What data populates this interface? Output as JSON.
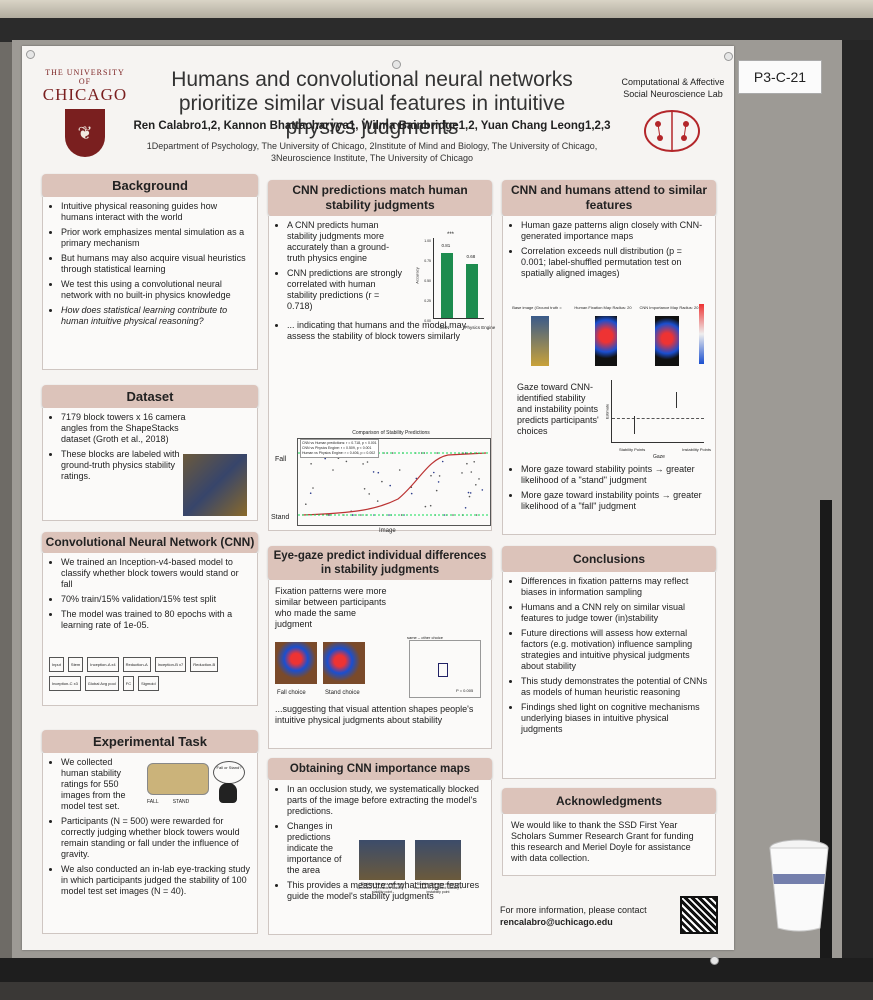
{
  "poster": {
    "university_small": "THE UNIVERSITY OF",
    "university_big": "CHICAGO",
    "title": "Humans and convolutional neural networks prioritize similar visual features in intuitive physics judgments",
    "authors": "Ren Calabro1,2, Kannon Bhattacharyya1, Wilma Bainbridge1,2, Yuan Chang Leong1,2,3",
    "affiliations": "1Department of Psychology, The University of Chicago, 2Institute of Mind and Biology, The University of Chicago, 3Neuroscience Institute, The University of Chicago",
    "lab": "Computational & Affective Social Neuroscience Lab",
    "booth": "P3-C-21"
  },
  "background": {
    "heading": "Background",
    "items": [
      "Intuitive physical reasoning guides how humans interact with the world",
      "Prior work emphasizes mental simulation as a primary mechanism",
      "But humans may also acquire visual heuristics through statistical learning",
      "We test this using a convolutional neural network with no built-in physics knowledge",
      "How does statistical learning contribute to human intuitive physical reasoning?"
    ]
  },
  "dataset": {
    "heading": "Dataset",
    "items": [
      "7179 block towers x 16 camera angles from the ShapeStacks dataset (Groth et al., 2018)",
      "These blocks are labeled with ground-truth physics stability ratings."
    ]
  },
  "cnn": {
    "heading": "Convolutional Neural Network (CNN)",
    "items": [
      "We trained an Inception-v4-based model to classify whether block towers would stand or fall",
      "70% train/15% validation/15% test split",
      "The model was trained to 80 epochs with a learning rate of 1e-05."
    ],
    "diagram_nodes": [
      "Input",
      "Stem",
      "Inception-A x4",
      "Reduction-A",
      "Inception-B x7",
      "Reduction-B",
      "Inception-C x3",
      "Global Avg pool",
      "FC",
      "Sigmoid"
    ]
  },
  "task": {
    "heading": "Experimental Task",
    "items": [
      "We collected human stability ratings for 550 images from the model test set.",
      "Participants (N = 500) were rewarded for correctly judging whether block towers would remain standing or fall under the influence of gravity.",
      "We also conducted an in-lab eye-tracking study in which participants judged the stability of 100 model test set images (N = 40)."
    ],
    "fall": "FALL",
    "stand": "STAND",
    "bubble": "Fall or Stand?"
  },
  "predictions": {
    "heading": "CNN predictions match human stability judgments",
    "items": [
      "A CNN predicts human stability judgments more accurately than a ground-truth physics engine",
      "CNN predictions are strongly correlated with human stability predictions (r = 0.718)",
      "... indicating that humans and the model may assess the stability of block towers similarly"
    ],
    "scatter_title": "Comparison of Stability Predictions",
    "scatter_stats": [
      "CNN vs Human predictions: r = 0.718, p < 0.001",
      "CNN vs Physics Engine: r = 0.509, p < 0.001",
      "Human vs Physics Engine: r = 0.406, p = 0.002"
    ],
    "scatter_xlabel": "Image",
    "fall": "Fall",
    "stand": "Stand",
    "sig": "***"
  },
  "chart_data": {
    "type": "bar",
    "categories": [
      "CNN",
      "Physics Engine"
    ],
    "values": [
      0.81,
      0.68
    ],
    "ylabel": "Accuracy",
    "ylim": [
      0,
      1.0
    ],
    "yticks": [
      "1.00",
      "0.75",
      "0.50",
      "0.25",
      "0.00"
    ],
    "value_labels": [
      "0.81",
      "0.68"
    ]
  },
  "gaze": {
    "heading": "Eye-gaze predict individual differences in stability judgments",
    "text_a": "Fixation patterns were more similar between participants who made the same judgment",
    "fall_choice": "Fall choice",
    "stand_choice": "Stand choice",
    "plot_label": "same – other choice",
    "p_value": "P = 0.005",
    "text_b": "...suggesting that visual attention shapes people's intuitive physical judgments about stability"
  },
  "maps": {
    "heading": "Obtaining CNN importance maps",
    "items": [
      "In an occlusion study, we systematically blocked parts of the image before extracting the model's predictions.",
      "Changes in predictions indicate the importance of the area",
      "This provides a measure of what image features guide the model's stability judgments"
    ],
    "cap_a": "Blocking this area causes a decrease in predicted stability = stability point",
    "cap_b": "Blocking this area causes a increase in predicted stability = instability point"
  },
  "attend": {
    "heading": "CNN and humans attend to similar features",
    "items_a": [
      "Human gaze patterns align closely with CNN-generated importance maps",
      "Correlation exceeds null distribution (p = 0.001; label-shuffled permutation test on spatially aligned images)"
    ],
    "img_labels": [
      "Base image (Ground truth = stable)",
      "Human Fixation Map Radius: 20 pixels",
      "CNN Importance Map Radius: 20 pixels"
    ],
    "gaze_text": "Gaze toward CNN-identified stability and instability points predicts participants' choices",
    "plot_xlabels": [
      "Stability Points",
      "Instability Points"
    ],
    "plot_xtitle": "Gaze",
    "plot_ytitle": "Estimate",
    "items_b": [
      "More gaze toward stability points → greater likelihood of a \"stand\" judgment",
      "More gaze toward instability points → greater likelihood of a \"fall\" judgment"
    ]
  },
  "conclusions": {
    "heading": "Conclusions",
    "items": [
      "Differences in fixation patterns may reflect biases in information sampling",
      "Humans and a CNN rely on similar visual features to judge tower (in)stability",
      "Future directions will assess how external factors (e.g. motivation) influence sampling strategies and intuitive physical judgments about stability",
      "This study demonstrates the potential of CNNs as models of human heuristic reasoning",
      "Findings shed light on cognitive mechanisms underlying biases in intuitive physical judgments"
    ]
  },
  "ack": {
    "heading": "Acknowledgments",
    "text": "We would like to thank the SSD First Year Scholars Summer Research Grant for funding this research and Meriel Doyle for assistance with data collection."
  },
  "contact": {
    "line1": "For more information, please contact",
    "email": "rencalabro@uchicago.edu"
  }
}
